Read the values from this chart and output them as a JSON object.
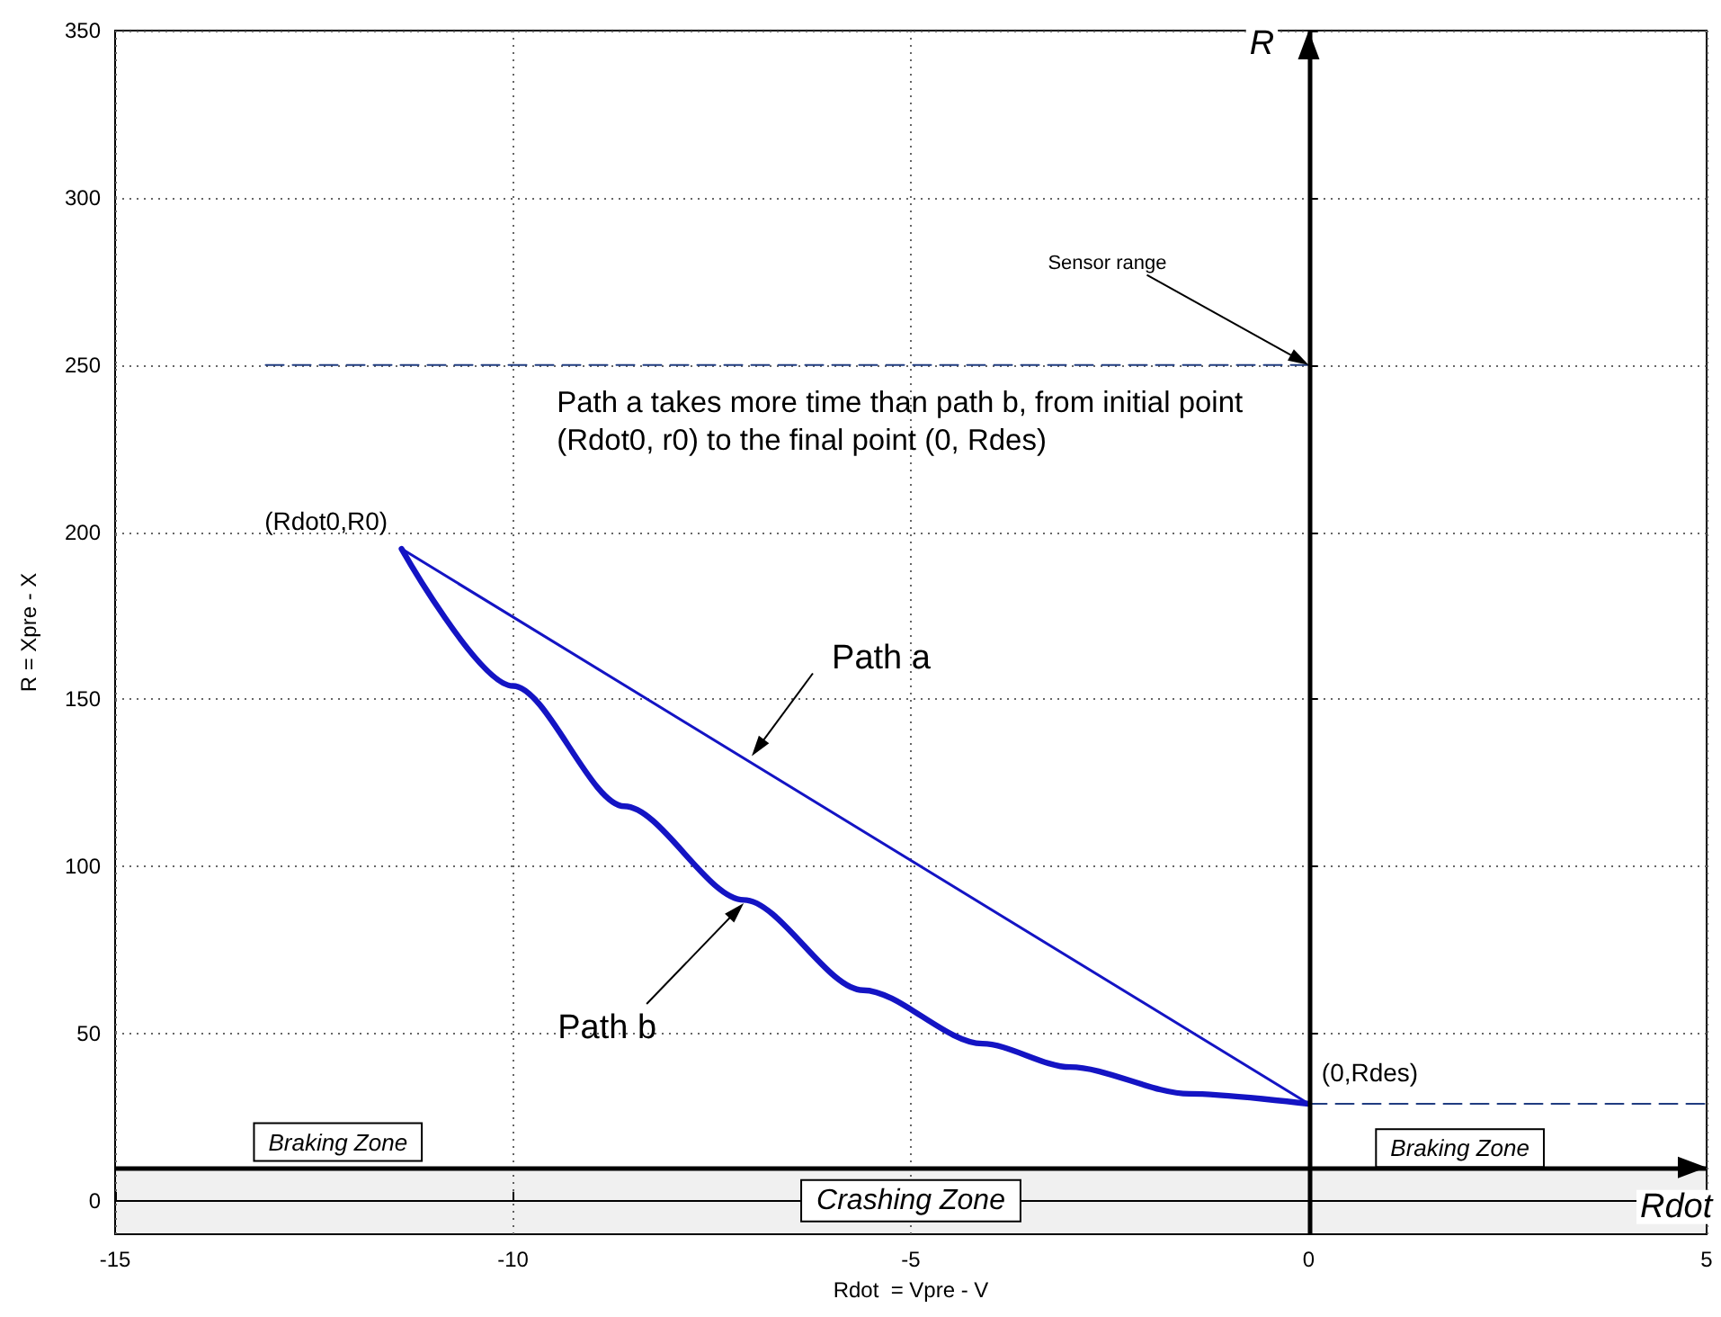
{
  "chart_data": {
    "type": "line",
    "xlabel": "Rdot  = Vpre - V",
    "ylabel": "R = Xpre - X",
    "xlim": [
      -15,
      5
    ],
    "xticks": [
      -15,
      -10,
      -5,
      0,
      5
    ],
    "ylim": [
      -10,
      350
    ],
    "yticks": [
      0,
      50,
      100,
      150,
      200,
      250,
      300,
      350
    ],
    "grid": true,
    "marker": "none",
    "series": [
      {
        "color": "#1414c4",
        "x": [
          -11.4,
          0
        ],
        "values": [
          195,
          29
        ],
        "line_style": "solid"
      },
      {
        "color": "#1414c4",
        "x": [
          -11.4,
          -10,
          -8.6,
          -7.1,
          -5.6,
          -4.1,
          -3,
          -1.5,
          0
        ],
        "values": [
          195,
          154,
          118,
          90,
          63,
          47,
          40,
          32,
          29
        ],
        "line_style": "solid"
      },
      {
        "color": "#203c80",
        "x": [
          0,
          -13.2
        ],
        "values": [
          250,
          250
        ],
        "line_style": "dashed"
      },
      {
        "color": "#203c80",
        "x": [
          0,
          5
        ],
        "values": [
          29,
          29
        ],
        "line_style": "dashed"
      }
    ],
    "ref_lines": [
      {
        "axis": "x",
        "value": 0,
        "label": "R",
        "color": "#000000"
      },
      {
        "axis": "y",
        "value": 10,
        "label": "Rdot",
        "color": "#000000"
      }
    ],
    "bands": [
      {
        "axis": "y",
        "from": -10,
        "to": 10,
        "label": "Crashing Zone"
      }
    ],
    "annotations": [
      "Path a takes more time than path b, from initial point (Rdot0, r0) to the final point (0, Rdes)",
      {
        "text": "(Rdot0,R0)",
        "x": -11.4,
        "y": 195
      },
      {
        "text": "(0,Rdes)",
        "x": 0,
        "y": 29
      },
      {
        "text": "Path a",
        "x": -7,
        "y": 133
      },
      {
        "text": "Path b",
        "x": -7.1,
        "y": 89
      },
      {
        "text": "Sensor range",
        "x": 0,
        "y": 250
      },
      "Braking Zone",
      "Braking Zone"
    ]
  }
}
